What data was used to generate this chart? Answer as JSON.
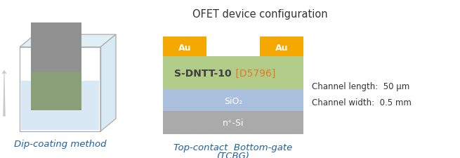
{
  "title": "OFET device configuration",
  "subtitle_left": "Dip-coating method",
  "subtitle_right_line1": "Top-contact  Bottom-gate",
  "subtitle_right_line2": "(TCBG)",
  "channel_line1": "Channel length:  50 μm",
  "channel_line2": "Channel width:  0.5 mm",
  "organic_label": "S-DNTT-10",
  "organic_label_color": "#404040",
  "organic_ref_label": " [D5796]",
  "organic_ref_color": "#E87820",
  "bg_color": "#FFFFFF",
  "arrow_color": "#C8C8C8",
  "beaker_edge_color": "#AAAAAA",
  "water_color": "#C8DFF0",
  "substrate_gray_color": "#909090",
  "substrate_green_color": "#8A9E78",
  "au_color": "#F5A800",
  "organic_color": "#B0CC88",
  "sio2_color": "#AABEDD",
  "nsi_color": "#AAAAAA",
  "text_blue": "#1E5FA0",
  "text_dark": "#333333"
}
